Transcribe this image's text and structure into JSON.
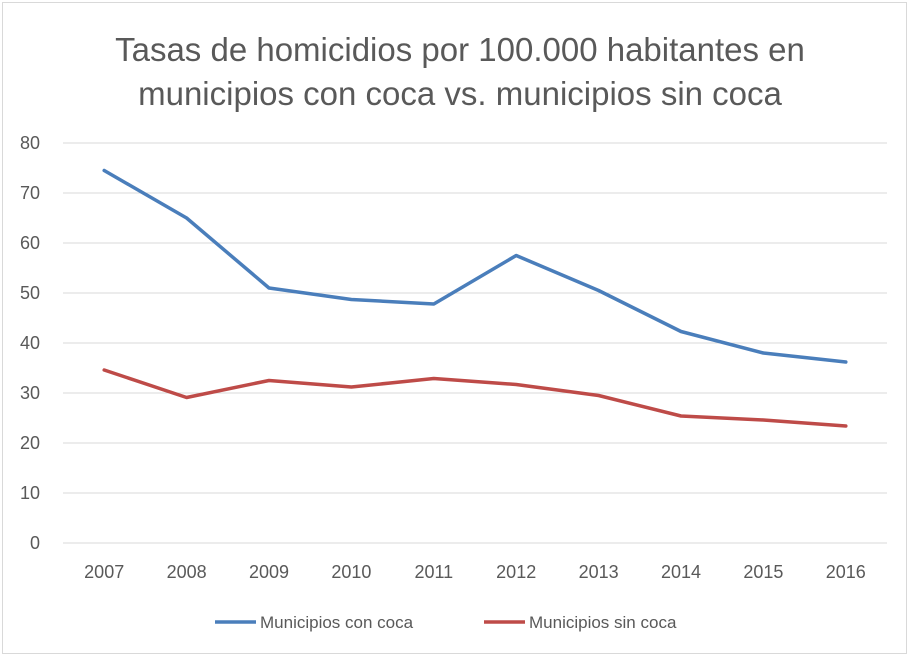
{
  "chart_data": {
    "type": "line",
    "title": "Tasas de homicidios por 100.000 habitantes en municipios con coca vs. municipios sin coca",
    "title_lines": [
      "Tasas de homicidios por 100.000 habitantes en",
      "municipios con coca vs. municipios sin coca"
    ],
    "xlabel": "",
    "ylabel": "",
    "categories": [
      "2007",
      "2008",
      "2009",
      "2010",
      "2011",
      "2012",
      "2013",
      "2014",
      "2015",
      "2016"
    ],
    "ylim": [
      0,
      80
    ],
    "yticks": [
      0,
      10,
      20,
      30,
      40,
      50,
      60,
      70,
      80
    ],
    "grid": true,
    "legend_position": "bottom",
    "series": [
      {
        "name": "Municipios con coca",
        "color": "#4a7ebb",
        "values": [
          74.5,
          65,
          51,
          48.7,
          47.8,
          57.5,
          50.5,
          42.3,
          38,
          36.2
        ]
      },
      {
        "name": "Municipios sin coca",
        "color": "#be4b48",
        "values": [
          34.6,
          29.1,
          32.5,
          31.2,
          32.9,
          31.7,
          29.5,
          25.4,
          24.6,
          23.4
        ]
      }
    ]
  }
}
